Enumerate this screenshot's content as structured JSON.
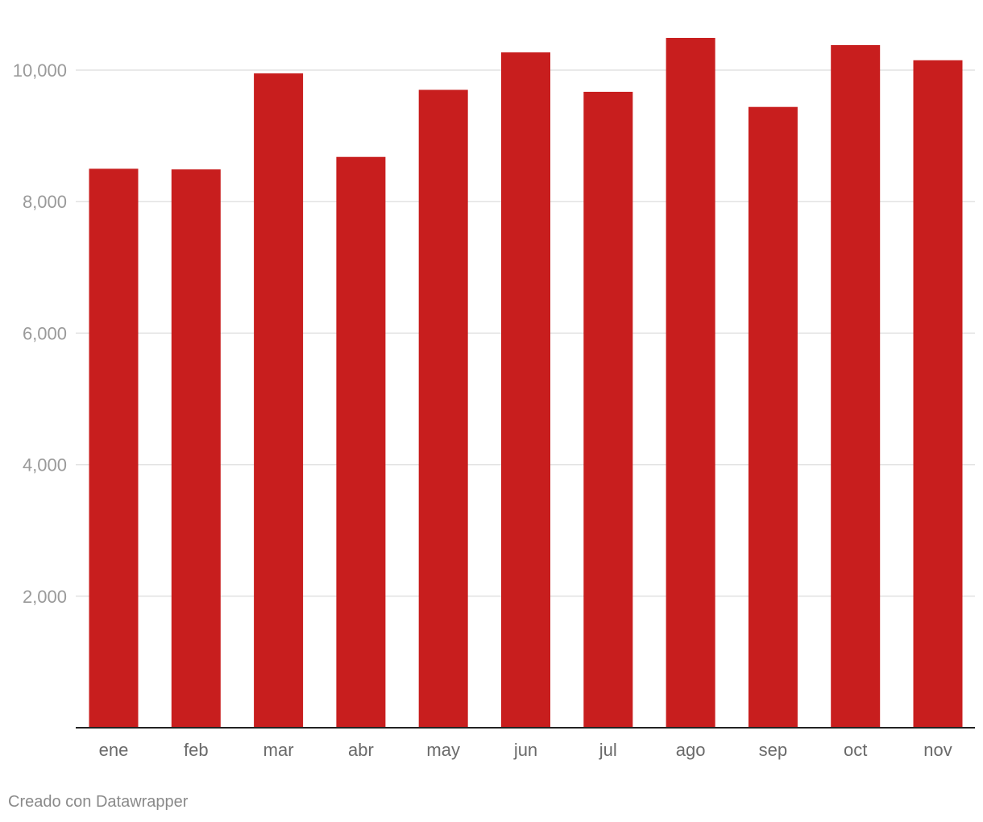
{
  "chart_data": {
    "type": "bar",
    "categories": [
      "ene",
      "feb",
      "mar",
      "abr",
      "may",
      "jun",
      "jul",
      "ago",
      "sep",
      "oct",
      "nov"
    ],
    "values": [
      8500,
      8490,
      9950,
      8680,
      9700,
      10270,
      9670,
      10490,
      9440,
      10380,
      10150
    ],
    "title": "",
    "xlabel": "",
    "ylabel": "",
    "ylim": [
      0,
      10500
    ],
    "yticks": [
      2000,
      4000,
      6000,
      8000,
      10000
    ],
    "ytick_labels": [
      "2,000",
      "4,000",
      "6,000",
      "8,000",
      "10,000"
    ],
    "grid": true,
    "bar_color": "#c81e1e"
  },
  "footer": {
    "credit": "Creado con Datawrapper"
  }
}
